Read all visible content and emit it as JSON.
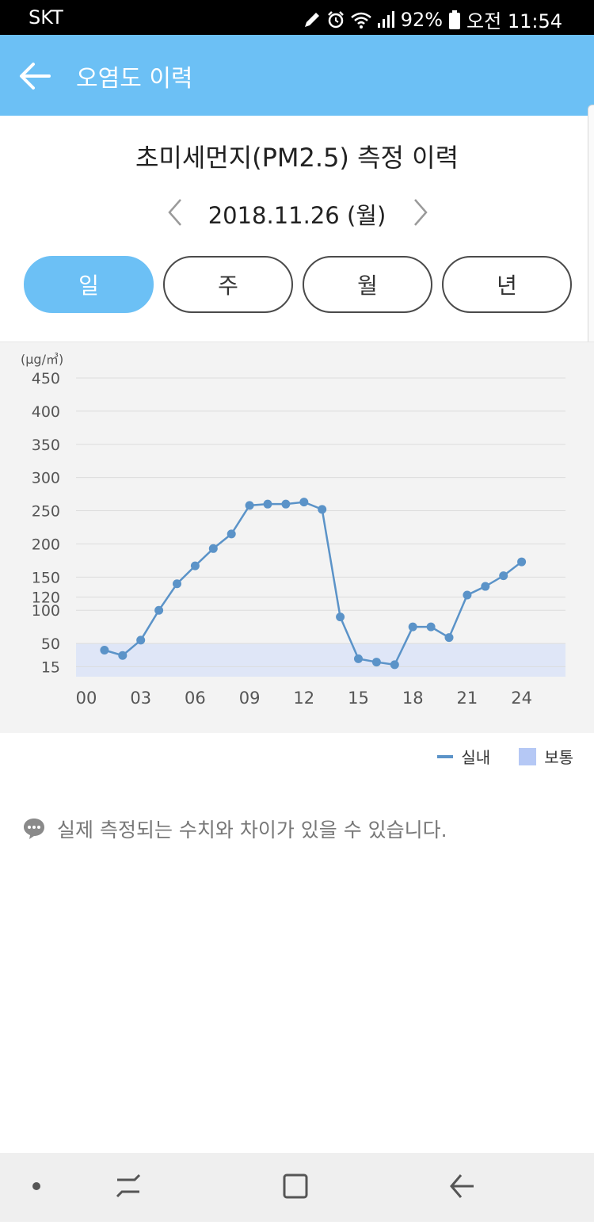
{
  "status_bar": {
    "carrier": "SKT",
    "battery": "92%",
    "time": "오전 11:54"
  },
  "app_bar": {
    "title": "오염도 이력"
  },
  "page": {
    "title": "초미세먼지(PM2.5) 측정 이력",
    "date": "2018.11.26 (월)"
  },
  "tabs": [
    {
      "label": "일",
      "active": true
    },
    {
      "label": "주",
      "active": false
    },
    {
      "label": "월",
      "active": false
    },
    {
      "label": "년",
      "active": false
    }
  ],
  "chart_data": {
    "type": "line",
    "unit_label": "(μg/㎥)",
    "y_ticks": [
      450,
      400,
      350,
      300,
      250,
      200,
      150,
      120,
      100,
      50,
      15
    ],
    "x_ticks": [
      "00",
      "03",
      "06",
      "09",
      "12",
      "15",
      "18",
      "21",
      "24"
    ],
    "ylim": [
      0,
      450
    ],
    "xlim": [
      0,
      26
    ],
    "band": {
      "name": "보통",
      "from": 0,
      "to": 50,
      "color": "#dfe6f7"
    },
    "series": [
      {
        "name": "실내",
        "color": "#5b93c8",
        "x": [
          1,
          2,
          3,
          4,
          5,
          6,
          7,
          8,
          9,
          10,
          11,
          12,
          13,
          14,
          15,
          16,
          17,
          18,
          19,
          20,
          21,
          22,
          23,
          24
        ],
        "values": [
          40,
          32,
          55,
          100,
          140,
          167,
          193,
          215,
          258,
          260,
          260,
          263,
          252,
          90,
          27,
          22,
          18,
          75,
          75,
          59,
          123,
          136,
          152,
          173
        ]
      }
    ],
    "grid": true
  },
  "legend": {
    "line_label": "실내",
    "band_label": "보통"
  },
  "notice": {
    "text": "실제 측정되는 수치와 차이가 있을 수 있습니다."
  },
  "colors": {
    "accent": "#6cc0f5",
    "line": "#5b93c8",
    "band": "#dfe6f7"
  }
}
